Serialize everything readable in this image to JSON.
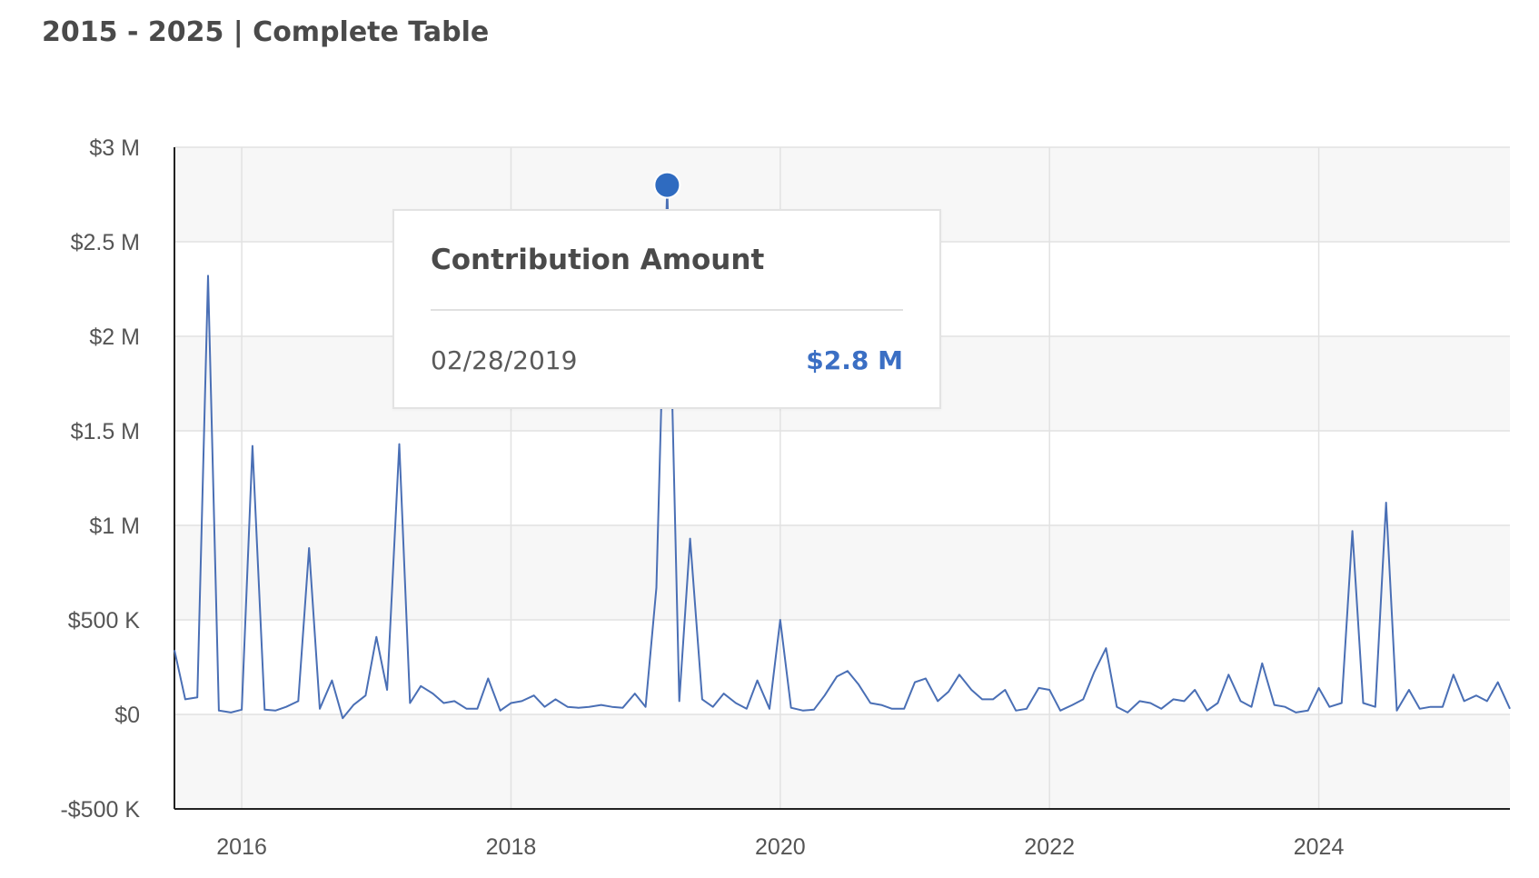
{
  "page": {
    "title": "2015 - 2025 | Complete Table"
  },
  "tooltip": {
    "title": "Contribution Amount",
    "date": "02/28/2019",
    "value": "$2.8 M"
  },
  "colors": {
    "line": "#4a6fb5",
    "marker": "#2f6bc0",
    "band": "#f7f7f7",
    "grid": "#e2e2e2",
    "axis": "#222222",
    "tick_text": "#555555",
    "tooltip_value": "#3b6fc4"
  },
  "chart_data": {
    "type": "line",
    "title": "",
    "xlabel": "",
    "ylabel": "",
    "xlim": [
      2015.5,
      2025.42
    ],
    "ylim": [
      -500000,
      3000000
    ],
    "grid": true,
    "legend": "none",
    "x_ticks": [
      2016,
      2018,
      2020,
      2022,
      2024
    ],
    "x_tick_labels": [
      "2016",
      "2018",
      "2020",
      "2022",
      "2024"
    ],
    "y_ticks": [
      -500000,
      0,
      500000,
      1000000,
      1500000,
      2000000,
      2500000,
      3000000
    ],
    "y_tick_labels": [
      "-$500 K",
      "$0",
      "$500 K",
      "$1 M",
      "$1.5 M",
      "$2 M",
      "$2.5 M",
      "$3 M"
    ],
    "highlight": {
      "x": 2019.16,
      "y": 2800000,
      "label": "$2.8 M",
      "date": "02/28/2019"
    },
    "series": [
      {
        "x": [
          2015.5,
          2015.58,
          2015.67,
          2015.75,
          2015.83,
          2015.92,
          2016.0,
          2016.08,
          2016.17,
          2016.25,
          2016.33,
          2016.42,
          2016.5,
          2016.58,
          2016.67,
          2016.75,
          2016.83,
          2016.92,
          2017.0,
          2017.08,
          2017.17,
          2017.25,
          2017.33,
          2017.42,
          2017.5,
          2017.58,
          2017.67,
          2017.75,
          2017.83,
          2017.92,
          2018.0,
          2018.08,
          2018.17,
          2018.25,
          2018.33,
          2018.42,
          2018.5,
          2018.58,
          2018.67,
          2018.75,
          2018.83,
          2018.92,
          2019.0,
          2019.08,
          2019.16,
          2019.25,
          2019.33,
          2019.42,
          2019.5,
          2019.58,
          2019.67,
          2019.75,
          2019.83,
          2019.92,
          2020.0,
          2020.08,
          2020.17,
          2020.25,
          2020.33,
          2020.42,
          2020.5,
          2020.58,
          2020.67,
          2020.75,
          2020.83,
          2020.92,
          2021.0,
          2021.08,
          2021.17,
          2021.25,
          2021.33,
          2021.42,
          2021.5,
          2021.58,
          2021.67,
          2021.75,
          2021.83,
          2021.92,
          2022.0,
          2022.08,
          2022.17,
          2022.25,
          2022.33,
          2022.42,
          2022.5,
          2022.58,
          2022.67,
          2022.75,
          2022.83,
          2022.92,
          2023.0,
          2023.08,
          2023.17,
          2023.25,
          2023.33,
          2023.42,
          2023.5,
          2023.58,
          2023.67,
          2023.75,
          2023.83,
          2023.92,
          2024.0,
          2024.08,
          2024.17,
          2024.25,
          2024.33,
          2024.42,
          2024.5,
          2024.58,
          2024.67,
          2024.75,
          2024.83,
          2024.92,
          2025.0,
          2025.08,
          2025.17,
          2025.25,
          2025.33,
          2025.42
        ],
        "y": [
          340000,
          80000,
          90000,
          2320000,
          20000,
          10000,
          25000,
          1420000,
          25000,
          20000,
          40000,
          70000,
          880000,
          30000,
          180000,
          -20000,
          50000,
          100000,
          410000,
          130000,
          1430000,
          60000,
          150000,
          110000,
          60000,
          70000,
          30000,
          30000,
          190000,
          20000,
          60000,
          70000,
          100000,
          40000,
          80000,
          40000,
          35000,
          40000,
          50000,
          40000,
          35000,
          110000,
          40000,
          670000,
          2800000,
          70000,
          930000,
          80000,
          40000,
          110000,
          60000,
          30000,
          180000,
          30000,
          500000,
          35000,
          20000,
          25000,
          100000,
          200000,
          230000,
          160000,
          60000,
          50000,
          30000,
          30000,
          170000,
          190000,
          70000,
          120000,
          210000,
          130000,
          80000,
          80000,
          130000,
          20000,
          30000,
          140000,
          130000,
          20000,
          50000,
          80000,
          220000,
          350000,
          40000,
          10000,
          70000,
          60000,
          30000,
          80000,
          70000,
          130000,
          20000,
          60000,
          210000,
          70000,
          40000,
          270000,
          50000,
          40000,
          10000,
          20000,
          140000,
          40000,
          60000,
          970000,
          60000,
          40000,
          1120000,
          20000,
          130000,
          30000,
          40000,
          40000,
          210000,
          70000,
          100000,
          70000,
          170000,
          30000
        ]
      }
    ]
  }
}
